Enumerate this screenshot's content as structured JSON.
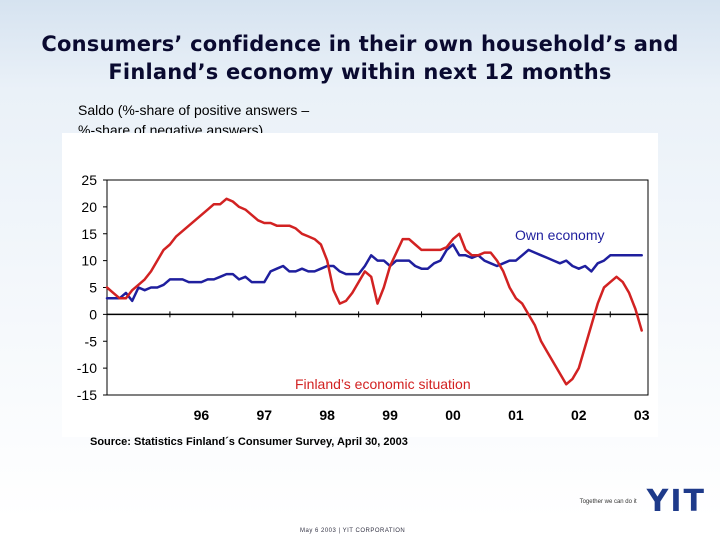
{
  "title": {
    "line1": "Consumers’ confidence in their own household’s and",
    "line2": "Finland’s economy within next 12 months"
  },
  "ylabel": {
    "line1": "Saldo (%-share of positive answers –",
    "line2": "%-share of negative answers)"
  },
  "source": "Source: Statistics Finland´s Consumer Survey, April 30, 2003",
  "footer": {
    "slogan": "Together we can do it",
    "logo": "YIT",
    "date_line": "May 6 2003  |  YIT CORPORATION"
  },
  "colors": {
    "own_economy": "#1f1f9e",
    "finland_economy": "#d22222",
    "axis": "#000000"
  },
  "chart_data": {
    "type": "line",
    "title": "Consumers’ confidence in their own household’s and Finland’s economy within next 12 months",
    "xlabel": "",
    "ylabel": "Saldo (%-share of positive answers – %-share of negative answers)",
    "ylim": [
      -15,
      25
    ],
    "yticks": [
      25,
      20,
      15,
      10,
      5,
      0,
      -5,
      -10,
      -15
    ],
    "xlim": [
      1995.0,
      2003.6
    ],
    "xticks": [
      {
        "label": "96",
        "value": 1996.5
      },
      {
        "label": "97",
        "value": 1997.5
      },
      {
        "label": "98",
        "value": 1998.5
      },
      {
        "label": "99",
        "value": 1999.5
      },
      {
        "label": "00",
        "value": 2000.5
      },
      {
        "label": "01",
        "value": 2001.5
      },
      {
        "label": "02",
        "value": 2002.5
      },
      {
        "label": "03",
        "value": 2003.5
      }
    ],
    "series": [
      {
        "name": "Own economy",
        "color": "#1f1f9e",
        "points": [
          [
            1995.0,
            3
          ],
          [
            1995.1,
            3
          ],
          [
            1995.2,
            3
          ],
          [
            1995.3,
            4
          ],
          [
            1995.4,
            2.5
          ],
          [
            1995.5,
            5
          ],
          [
            1995.6,
            4.5
          ],
          [
            1995.7,
            5
          ],
          [
            1995.8,
            5
          ],
          [
            1995.9,
            5.5
          ],
          [
            1996.0,
            6.5
          ],
          [
            1996.1,
            6.5
          ],
          [
            1996.2,
            6.5
          ],
          [
            1996.3,
            6
          ],
          [
            1996.4,
            6
          ],
          [
            1996.5,
            6
          ],
          [
            1996.6,
            6.5
          ],
          [
            1996.7,
            6.5
          ],
          [
            1996.8,
            7
          ],
          [
            1996.9,
            7.5
          ],
          [
            1997.0,
            7.5
          ],
          [
            1997.1,
            6.5
          ],
          [
            1997.2,
            7
          ],
          [
            1997.3,
            6
          ],
          [
            1997.4,
            6
          ],
          [
            1997.5,
            6
          ],
          [
            1997.6,
            8
          ],
          [
            1997.7,
            8.5
          ],
          [
            1997.8,
            9
          ],
          [
            1997.9,
            8
          ],
          [
            1998.0,
            8
          ],
          [
            1998.1,
            8.5
          ],
          [
            1998.2,
            8
          ],
          [
            1998.3,
            8
          ],
          [
            1998.4,
            8.5
          ],
          [
            1998.5,
            9
          ],
          [
            1998.6,
            9
          ],
          [
            1998.7,
            8
          ],
          [
            1998.8,
            7.5
          ],
          [
            1998.9,
            7.5
          ],
          [
            1999.0,
            7.5
          ],
          [
            1999.1,
            9
          ],
          [
            1999.2,
            11
          ],
          [
            1999.3,
            10
          ],
          [
            1999.4,
            10
          ],
          [
            1999.5,
            9
          ],
          [
            1999.6,
            10
          ],
          [
            1999.7,
            10
          ],
          [
            1999.8,
            10
          ],
          [
            1999.9,
            9
          ],
          [
            2000.0,
            8.5
          ],
          [
            2000.1,
            8.5
          ],
          [
            2000.2,
            9.5
          ],
          [
            2000.3,
            10
          ],
          [
            2000.4,
            12
          ],
          [
            2000.5,
            13
          ],
          [
            2000.6,
            11
          ],
          [
            2000.7,
            11
          ],
          [
            2000.8,
            10.5
          ],
          [
            2000.9,
            11
          ],
          [
            2001.0,
            10
          ],
          [
            2001.1,
            9.5
          ],
          [
            2001.2,
            9
          ],
          [
            2001.3,
            9.5
          ],
          [
            2001.4,
            10
          ],
          [
            2001.5,
            10
          ],
          [
            2001.6,
            11
          ],
          [
            2001.7,
            12
          ],
          [
            2001.8,
            11.5
          ],
          [
            2001.9,
            11
          ],
          [
            2002.0,
            10.5
          ],
          [
            2002.1,
            10
          ],
          [
            2002.2,
            9.5
          ],
          [
            2002.3,
            10
          ],
          [
            2002.4,
            9
          ],
          [
            2002.5,
            8.5
          ],
          [
            2002.6,
            9
          ],
          [
            2002.7,
            8
          ],
          [
            2002.8,
            9.5
          ],
          [
            2002.9,
            10
          ],
          [
            2003.0,
            11
          ],
          [
            2003.1,
            11
          ],
          [
            2003.2,
            11
          ],
          [
            2003.3,
            11
          ],
          [
            2003.4,
            11
          ],
          [
            2003.5,
            11
          ]
        ]
      },
      {
        "name": "Finland’s economic situation",
        "color": "#d22222",
        "points": [
          [
            1995.0,
            5
          ],
          [
            1995.1,
            4
          ],
          [
            1995.2,
            3
          ],
          [
            1995.3,
            3
          ],
          [
            1995.4,
            4.5
          ],
          [
            1995.5,
            5.5
          ],
          [
            1995.6,
            6.5
          ],
          [
            1995.7,
            8
          ],
          [
            1995.8,
            10
          ],
          [
            1995.9,
            12
          ],
          [
            1996.0,
            13
          ],
          [
            1996.1,
            14.5
          ],
          [
            1996.2,
            15.5
          ],
          [
            1996.3,
            16.5
          ],
          [
            1996.4,
            17.5
          ],
          [
            1996.5,
            18.5
          ],
          [
            1996.6,
            19.5
          ],
          [
            1996.7,
            20.5
          ],
          [
            1996.8,
            20.5
          ],
          [
            1996.9,
            21.5
          ],
          [
            1997.0,
            21
          ],
          [
            1997.1,
            20
          ],
          [
            1997.2,
            19.5
          ],
          [
            1997.3,
            18.5
          ],
          [
            1997.4,
            17.5
          ],
          [
            1997.5,
            17
          ],
          [
            1997.6,
            17
          ],
          [
            1997.7,
            16.5
          ],
          [
            1997.8,
            16.5
          ],
          [
            1997.9,
            16.5
          ],
          [
            1998.0,
            16
          ],
          [
            1998.1,
            15
          ],
          [
            1998.2,
            14.5
          ],
          [
            1998.3,
            14
          ],
          [
            1998.4,
            13
          ],
          [
            1998.5,
            10
          ],
          [
            1998.6,
            4.5
          ],
          [
            1998.7,
            2
          ],
          [
            1998.8,
            2.5
          ],
          [
            1998.9,
            4
          ],
          [
            1999.0,
            6
          ],
          [
            1999.1,
            8
          ],
          [
            1999.2,
            7
          ],
          [
            1999.3,
            2
          ],
          [
            1999.4,
            5
          ],
          [
            1999.5,
            9
          ],
          [
            1999.6,
            11.5
          ],
          [
            1999.7,
            14
          ],
          [
            1999.8,
            14
          ],
          [
            1999.9,
            13
          ],
          [
            2000.0,
            12
          ],
          [
            2000.1,
            12
          ],
          [
            2000.2,
            12
          ],
          [
            2000.3,
            12
          ],
          [
            2000.4,
            12.5
          ],
          [
            2000.5,
            14
          ],
          [
            2000.6,
            15
          ],
          [
            2000.7,
            12
          ],
          [
            2000.8,
            11
          ],
          [
            2000.9,
            11
          ],
          [
            2001.0,
            11.5
          ],
          [
            2001.1,
            11.5
          ],
          [
            2001.2,
            10
          ],
          [
            2001.3,
            8
          ],
          [
            2001.4,
            5
          ],
          [
            2001.5,
            3
          ],
          [
            2001.6,
            2
          ],
          [
            2001.7,
            0
          ],
          [
            2001.8,
            -2
          ],
          [
            2001.9,
            -5
          ],
          [
            2002.0,
            -7
          ],
          [
            2002.1,
            -9
          ],
          [
            2002.2,
            -11
          ],
          [
            2002.3,
            -13
          ],
          [
            2002.4,
            -12
          ],
          [
            2002.5,
            -10
          ],
          [
            2002.6,
            -6
          ],
          [
            2002.7,
            -2
          ],
          [
            2002.8,
            2
          ],
          [
            2002.9,
            5
          ],
          [
            2003.0,
            6
          ],
          [
            2003.1,
            7
          ],
          [
            2003.2,
            6
          ],
          [
            2003.3,
            4
          ],
          [
            2003.4,
            1
          ],
          [
            2003.5,
            -3
          ]
        ]
      }
    ],
    "annotations": [
      {
        "text": "Own economy",
        "series": 0
      },
      {
        "text": "Finland’s economic situation",
        "series": 1
      }
    ]
  }
}
